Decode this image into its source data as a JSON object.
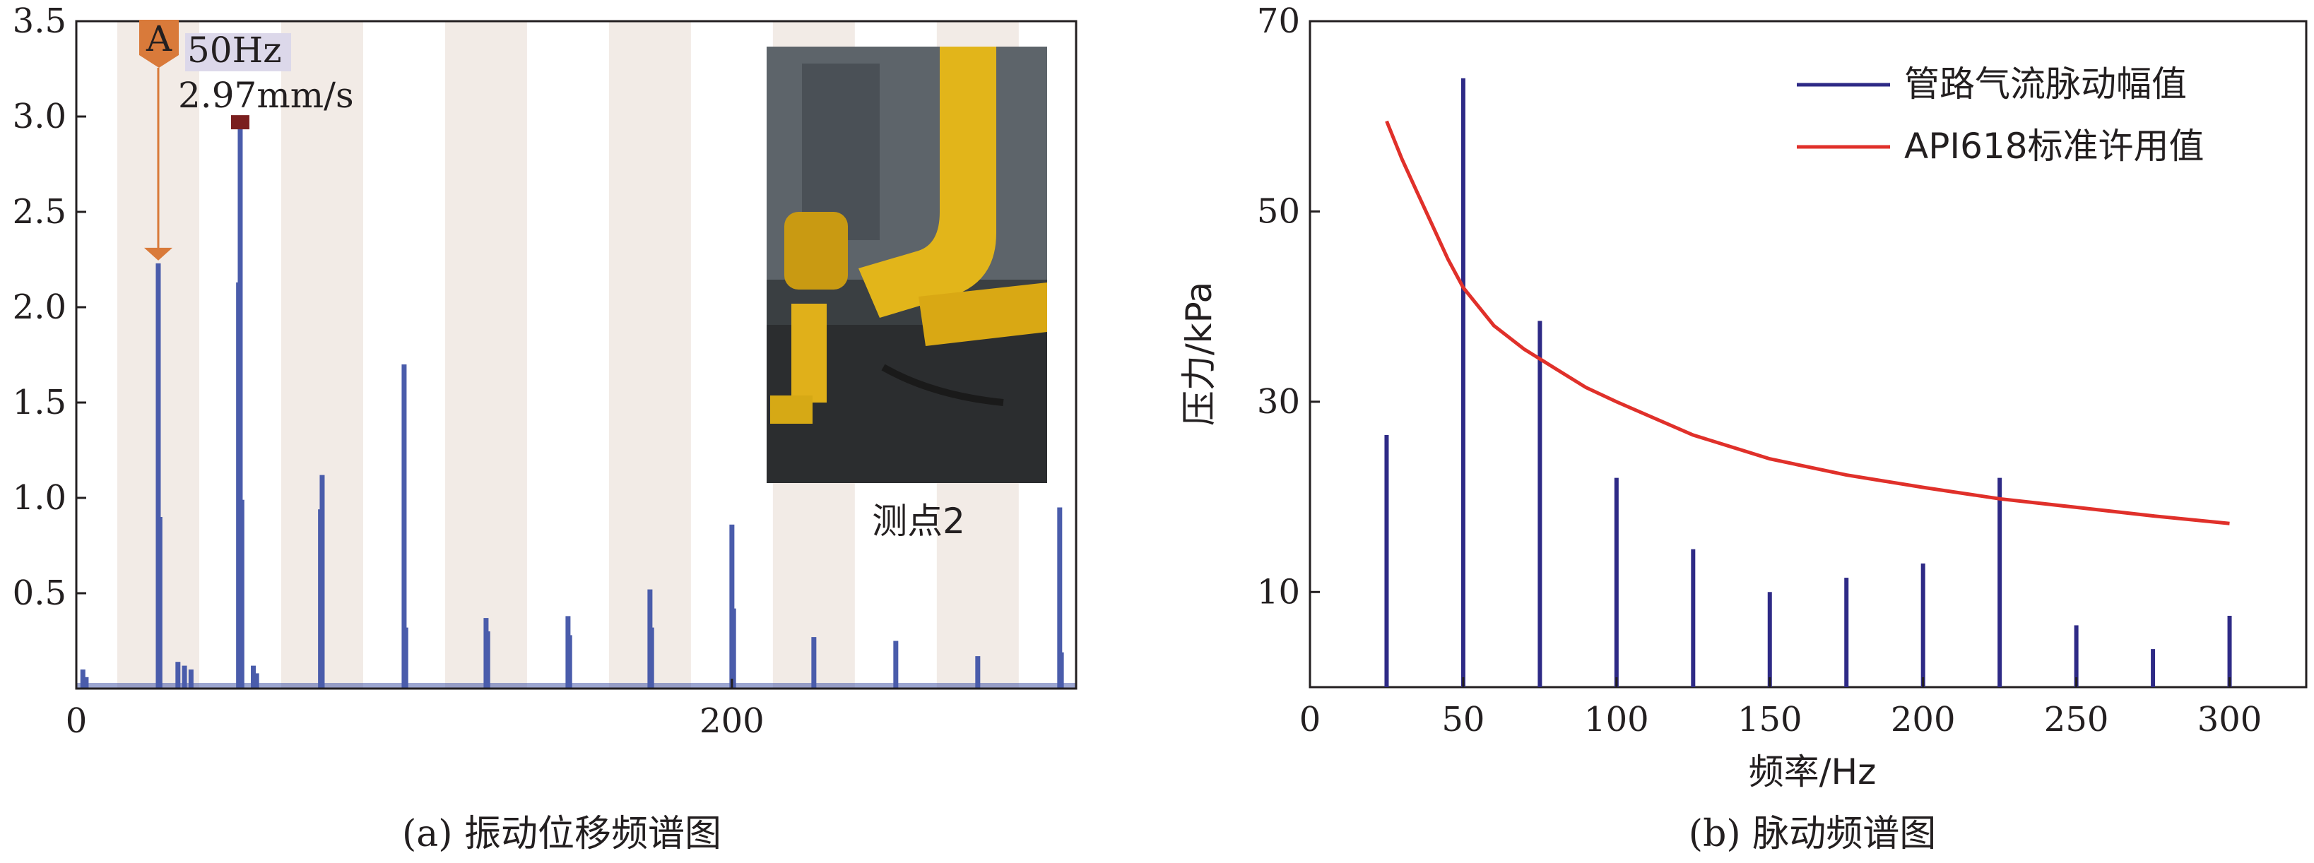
{
  "chart_data": [
    {
      "type": "bar",
      "caption": "(a) 振动位移频谱图",
      "xlim": [
        0,
        305
      ],
      "ylim": [
        0,
        3.5
      ],
      "x_ticks": [
        0,
        200
      ],
      "y_ticks": [
        0.5,
        1.0,
        1.5,
        2.0,
        2.5,
        3.0,
        3.5
      ],
      "y_tick_labels": [
        "0.5",
        "1.0",
        "1.5",
        "2.0",
        "2.5",
        "3.0",
        "3.5"
      ],
      "grid": "alternating vertical bands",
      "colors": {
        "bar": "#4a5cab",
        "band": "#f2ebe6",
        "marker_a": "#d97a3a",
        "marker_peak": "#7a1e1e"
      },
      "peaks": [
        {
          "x": 25,
          "value": 2.23
        },
        {
          "x": 25.5,
          "value": 0.9
        },
        {
          "x": 50,
          "value": 2.97
        },
        {
          "x": 49.5,
          "value": 2.13
        },
        {
          "x": 50.5,
          "value": 0.99
        },
        {
          "x": 75,
          "value": 1.12
        },
        {
          "x": 74.5,
          "value": 0.94
        },
        {
          "x": 100,
          "value": 1.7
        },
        {
          "x": 100.5,
          "value": 0.32
        },
        {
          "x": 125,
          "value": 0.37
        },
        {
          "x": 125.5,
          "value": 0.3
        },
        {
          "x": 150,
          "value": 0.38
        },
        {
          "x": 150.5,
          "value": 0.28
        },
        {
          "x": 175,
          "value": 0.52
        },
        {
          "x": 175.5,
          "value": 0.32
        },
        {
          "x": 200,
          "value": 0.86
        },
        {
          "x": 200.5,
          "value": 0.42
        },
        {
          "x": 225,
          "value": 0.27
        },
        {
          "x": 250,
          "value": 0.25
        },
        {
          "x": 275,
          "value": 0.17
        },
        {
          "x": 300,
          "value": 0.95
        },
        {
          "x": 300.5,
          "value": 0.19
        },
        {
          "x": 2,
          "value": 0.1
        },
        {
          "x": 3,
          "value": 0.06
        },
        {
          "x": 31,
          "value": 0.14
        },
        {
          "x": 33,
          "value": 0.12
        },
        {
          "x": 35,
          "value": 0.1
        },
        {
          "x": 54,
          "value": 0.12
        },
        {
          "x": 55,
          "value": 0.08
        }
      ],
      "marker_a": {
        "label": "A",
        "x": 25,
        "value": 2.23
      },
      "annotation": {
        "freq": "50Hz",
        "amp": "2.97mm/s",
        "x": 50,
        "value": 2.97
      },
      "photo_label": "测点2"
    },
    {
      "type": "bar",
      "caption": "(b) 脉动频谱图",
      "xlabel": "频率/Hz",
      "ylabel": "压力/kPa",
      "xlim": [
        0,
        325
      ],
      "ylim": [
        0,
        70
      ],
      "x_ticks": [
        0,
        50,
        100,
        150,
        200,
        250,
        300
      ],
      "y_ticks": [
        10,
        30,
        50,
        70
      ],
      "legend_position": "top-right",
      "series": [
        {
          "name": "管路气流脉动幅值",
          "type": "bar",
          "color": "#2e2a86",
          "x": [
            25,
            50,
            75,
            100,
            125,
            150,
            175,
            200,
            225,
            250,
            275,
            300
          ],
          "values": [
            26.5,
            64,
            38.5,
            22,
            14.5,
            10,
            11.5,
            13,
            22,
            6.5,
            4,
            7.5
          ]
        },
        {
          "name": "API618标准许用值",
          "type": "line",
          "color": "#e0302a",
          "x": [
            25,
            30,
            35,
            40,
            45,
            50,
            60,
            70,
            75,
            80,
            90,
            100,
            125,
            150,
            175,
            200,
            225,
            250,
            275,
            300
          ],
          "values": [
            59.5,
            55.5,
            52,
            48.5,
            45,
            42,
            38,
            35.5,
            34.5,
            33.5,
            31.5,
            30,
            26.5,
            24,
            22.3,
            21,
            19.8,
            18.9,
            18,
            17.2
          ]
        }
      ]
    }
  ]
}
